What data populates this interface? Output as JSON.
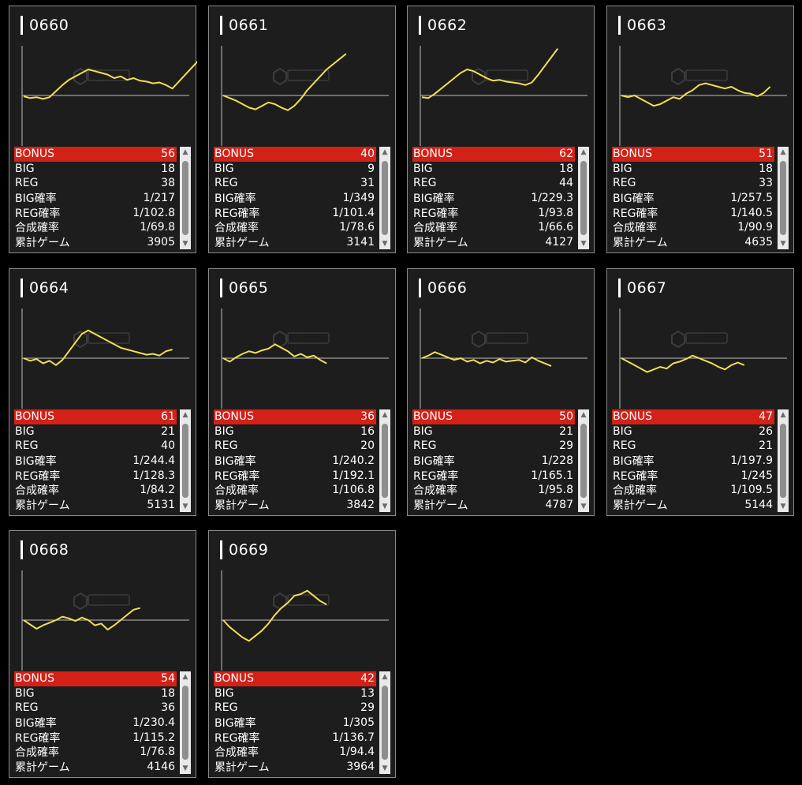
{
  "labels": {
    "bonus": "BONUS",
    "big": "BIG",
    "reg": "REG",
    "big_rate": "BIG確率",
    "reg_rate": "REG確率",
    "combined_rate": "合成確率",
    "total_games": "累計ゲーム"
  },
  "colors": {
    "line": "#f0e050",
    "bonus_bg": "#d42117"
  },
  "machines": [
    {
      "id": "0660",
      "bonus": "56",
      "big": "18",
      "reg": "38",
      "big_rate": "1/217",
      "reg_rate": "1/102.8",
      "combined_rate": "1/69.8",
      "total_games": "3905",
      "trend": [
        -1,
        -3,
        -2,
        -4,
        -2,
        5,
        12,
        18,
        22,
        26,
        30,
        28,
        26,
        24,
        20,
        22,
        18,
        20,
        17,
        16,
        14,
        15,
        12,
        8,
        16,
        24,
        32,
        40,
        48,
        55
      ]
    },
    {
      "id": "0661",
      "bonus": "40",
      "big": "9",
      "reg": "31",
      "big_rate": "1/349",
      "reg_rate": "1/101.4",
      "combined_rate": "1/78.6",
      "total_games": "3141",
      "trend": [
        0,
        -3,
        -6,
        -10,
        -14,
        -16,
        -12,
        -8,
        -10,
        -14,
        -17,
        -12,
        -4,
        6,
        14,
        22,
        30,
        36,
        42,
        48
      ]
    },
    {
      "id": "0662",
      "bonus": "62",
      "big": "18",
      "reg": "44",
      "big_rate": "1/229.3",
      "reg_rate": "1/93.8",
      "combined_rate": "1/66.6",
      "total_games": "4127",
      "trend": [
        -2,
        -3,
        2,
        8,
        14,
        20,
        26,
        30,
        28,
        24,
        20,
        17,
        18,
        16,
        15,
        14,
        12,
        15,
        24,
        34,
        44,
        54
      ]
    },
    {
      "id": "0663",
      "bonus": "51",
      "big": "18",
      "reg": "33",
      "big_rate": "1/257.5",
      "reg_rate": "1/140.5",
      "combined_rate": "1/90.9",
      "total_games": "4635",
      "trend": [
        0,
        -2,
        0,
        -4,
        -8,
        -12,
        -10,
        -6,
        -2,
        -4,
        2,
        6,
        12,
        14,
        12,
        10,
        8,
        10,
        6,
        3,
        2,
        -1,
        3,
        10
      ]
    },
    {
      "id": "0664",
      "bonus": "61",
      "big": "21",
      "reg": "40",
      "big_rate": "1/244.4",
      "reg_rate": "1/128.3",
      "combined_rate": "1/84.2",
      "total_games": "5131",
      "trend": [
        0,
        -3,
        -1,
        -6,
        -3,
        -8,
        -2,
        8,
        18,
        28,
        32,
        28,
        24,
        20,
        16,
        12,
        10,
        8,
        6,
        4,
        5,
        3,
        8,
        10
      ]
    },
    {
      "id": "0665",
      "bonus": "36",
      "big": "16",
      "reg": "20",
      "big_rate": "1/240.2",
      "reg_rate": "1/192.1",
      "combined_rate": "1/106.8",
      "total_games": "3842",
      "trend": [
        0,
        -4,
        1,
        5,
        8,
        6,
        9,
        11,
        16,
        12,
        8,
        2,
        5,
        1,
        3,
        -2,
        -6
      ]
    },
    {
      "id": "0666",
      "bonus": "50",
      "big": "21",
      "reg": "29",
      "big_rate": "1/228",
      "reg_rate": "1/165.1",
      "combined_rate": "1/95.8",
      "total_games": "4787",
      "trend": [
        0,
        3,
        7,
        4,
        1,
        -2,
        0,
        -4,
        -2,
        -6,
        -3,
        -5,
        -1,
        -4,
        -3,
        -2,
        -5,
        1,
        -3,
        -6,
        -9
      ]
    },
    {
      "id": "0667",
      "bonus": "47",
      "big": "26",
      "reg": "21",
      "big_rate": "1/197.9",
      "reg_rate": "1/245",
      "combined_rate": "1/109.5",
      "total_games": "5144",
      "trend": [
        0,
        -4,
        -8,
        -12,
        -16,
        -13,
        -10,
        -12,
        -6,
        -4,
        -1,
        3,
        0,
        -3,
        -6,
        -10,
        -13,
        -8,
        -5,
        -8
      ]
    },
    {
      "id": "0668",
      "bonus": "54",
      "big": "18",
      "reg": "36",
      "big_rate": "1/230.4",
      "reg_rate": "1/115.2",
      "combined_rate": "1/76.8",
      "total_games": "4146",
      "trend": [
        0,
        -5,
        -10,
        -6,
        -3,
        0,
        4,
        2,
        -1,
        3,
        0,
        -6,
        -4,
        -11,
        -6,
        0,
        6,
        12,
        14
      ]
    },
    {
      "id": "0669",
      "bonus": "42",
      "big": "13",
      "reg": "29",
      "big_rate": "1/305",
      "reg_rate": "1/136.7",
      "combined_rate": "1/94.4",
      "total_games": "3964",
      "trend": [
        0,
        -8,
        -14,
        -20,
        -24,
        -18,
        -12,
        -4,
        6,
        14,
        20,
        28,
        30,
        34,
        28,
        22,
        18
      ]
    }
  ]
}
